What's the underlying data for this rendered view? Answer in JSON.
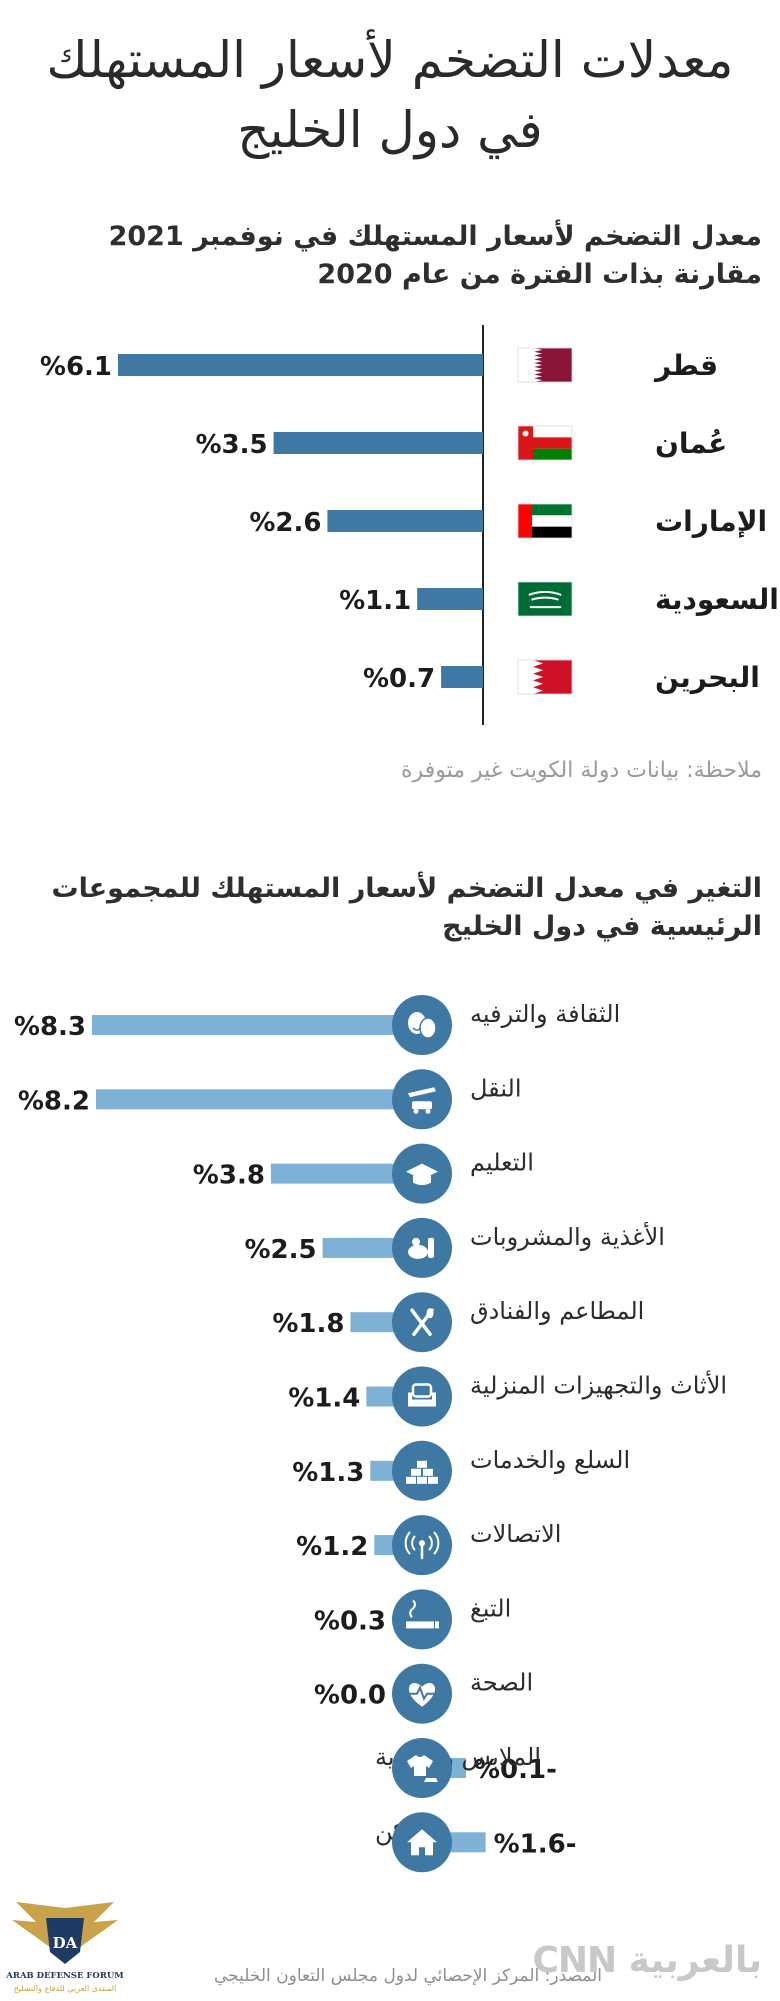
{
  "header": {
    "title_line1": "معدلات التضخم لأسعار المستهلك",
    "title_line2": "في دول الخليج"
  },
  "section1": {
    "title_line1": "معدل التضخم لأسعار المستهلك في نوفمبر 2021",
    "title_line2": "مقارنة بذات الفترة من عام 2020",
    "note": "ملاحظة: بيانات دولة الكويت غير متوفرة"
  },
  "section2": {
    "title_line1": "التغير في معدل التضخم لأسعار المستهلك للمجموعات",
    "title_line2": "الرئيسية في دول الخليج"
  },
  "footer": {
    "source": "المصدر: المركز الإحصائي لدول مجلس التعاون الخليجي",
    "logo_text": "بالعربية CNN",
    "forum_name": "ARAB DEFENSE FORUM",
    "forum_name_ar": "المنتدى العربي للدفاع والتسليح",
    "forum_initials": "DA"
  },
  "chart_data": [
    {
      "type": "bar",
      "orientation": "horizontal",
      "categories": [
        "قطر",
        "عُمان",
        "الإمارات",
        "السعودية",
        "البحرين"
      ],
      "values": [
        6.1,
        3.5,
        2.6,
        1.1,
        0.7
      ],
      "value_labels": [
        "%6.1",
        "%3.5",
        "%2.6",
        "%1.1",
        "%0.7"
      ],
      "flags": [
        "qatar-flag",
        "oman-flag",
        "uae-flag",
        "saudi-flag",
        "bahrain-flag"
      ],
      "color": "#3f78a3",
      "xlim": [
        0,
        6.1
      ]
    },
    {
      "type": "bar",
      "orientation": "horizontal",
      "categories": [
        "الثقافة والترفيه",
        "النقل",
        "التعليم",
        "الأغذية والمشروبات",
        "المطاعم والفنادق",
        "الأثاث والتجهيزات المنزلية",
        "السلع والخدمات",
        "الاتصالات",
        "التبغ",
        "الصحة",
        "الملابس والأحذية",
        "السكن"
      ],
      "values": [
        8.3,
        8.2,
        3.8,
        2.5,
        1.8,
        1.4,
        1.3,
        1.2,
        0.3,
        0.0,
        -0.1,
        -1.6
      ],
      "value_labels": [
        "%8.3",
        "%8.2",
        "%3.8",
        "%2.5",
        "%1.8",
        "%1.4",
        "%1.3",
        "%1.2",
        "%0.3",
        "%0.0",
        "%0.1-",
        "%1.6-"
      ],
      "icons": [
        "theater-masks-icon",
        "transport-icon",
        "graduation-cap-icon",
        "food-icon",
        "utensils-icon",
        "armchair-icon",
        "goods-icon",
        "antenna-icon",
        "cigarette-icon",
        "heart-pulse-icon",
        "clothing-icon",
        "house-icon"
      ],
      "color": "#7eb1d6",
      "icon_color": "#3f78a3",
      "xlim": [
        -1.6,
        8.3
      ]
    }
  ]
}
